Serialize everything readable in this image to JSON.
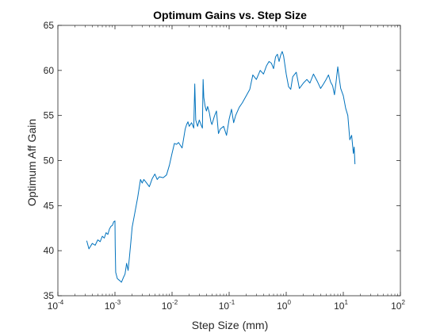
{
  "chart_data": {
    "type": "line",
    "title": "Optimum Gains vs. Step Size",
    "xlabel": "Step Size (mm)",
    "ylabel": "Optimum Aff Gain",
    "xscale": "log",
    "xlim": [
      0.0001,
      100
    ],
    "ylim": [
      35,
      65
    ],
    "xticks": [
      {
        "base": "10",
        "exp": "-4"
      },
      {
        "base": "10",
        "exp": "-3"
      },
      {
        "base": "10",
        "exp": "-2"
      },
      {
        "base": "10",
        "exp": "-1"
      },
      {
        "base": "10",
        "exp": "0"
      },
      {
        "base": "10",
        "exp": "1"
      },
      {
        "base": "10",
        "exp": "2"
      }
    ],
    "yticks": [
      "35",
      "40",
      "45",
      "50",
      "55",
      "60",
      "65"
    ],
    "grid": false,
    "legend": "none",
    "line_color": "#0072BD",
    "series": [
      {
        "x": [
          0.00032,
          0.00035,
          0.0004,
          0.00045,
          0.0005,
          0.00055,
          0.0006,
          0.00065,
          0.0007,
          0.00075,
          0.0008,
          0.00085,
          0.0009,
          0.00095,
          0.001,
          0.00101,
          0.00103,
          0.0011,
          0.0012,
          0.0013,
          0.0014,
          0.0015,
          0.0016,
          0.0017,
          0.0018,
          0.0019,
          0.002,
          0.0022,
          0.0025,
          0.0028,
          0.003,
          0.0032,
          0.0035,
          0.004,
          0.0045,
          0.005,
          0.0055,
          0.006,
          0.007,
          0.008,
          0.009,
          0.01,
          0.011,
          0.012,
          0.013,
          0.015,
          0.017,
          0.018,
          0.019,
          0.02,
          0.022,
          0.024,
          0.025,
          0.026,
          0.028,
          0.03,
          0.032,
          0.034,
          0.035,
          0.036,
          0.038,
          0.04,
          0.042,
          0.045,
          0.048,
          0.05,
          0.055,
          0.06,
          0.065,
          0.07,
          0.08,
          0.09,
          0.1,
          0.11,
          0.12,
          0.13,
          0.15,
          0.17,
          0.2,
          0.23,
          0.26,
          0.3,
          0.35,
          0.4,
          0.45,
          0.5,
          0.55,
          0.6,
          0.65,
          0.7,
          0.75,
          0.8,
          0.85,
          0.9,
          1.0,
          1.1,
          1.2,
          1.3,
          1.5,
          1.7,
          2.0,
          2.3,
          2.6,
          3.0,
          3.5,
          4.0,
          4.5,
          5.0,
          5.5,
          6.0,
          6.5,
          7.0,
          7.5,
          8.0,
          8.5,
          9.0,
          10.0,
          11.0,
          12.0,
          13.0,
          14.0,
          15.0,
          15.5,
          16.0
        ],
        "y": [
          41.1,
          40.2,
          40.8,
          40.6,
          41.2,
          41.0,
          41.6,
          41.4,
          42.0,
          41.8,
          42.4,
          42.7,
          42.8,
          43.2,
          43.3,
          40.5,
          37.6,
          36.9,
          36.7,
          36.5,
          37.0,
          37.4,
          38.6,
          37.8,
          39.4,
          41.0,
          42.6,
          44.0,
          45.9,
          47.9,
          47.5,
          47.9,
          47.6,
          47.1,
          48.0,
          48.5,
          47.9,
          48.2,
          48.1,
          48.4,
          49.5,
          50.8,
          51.9,
          51.8,
          52.0,
          51.4,
          53.5,
          54.0,
          54.3,
          53.8,
          54.2,
          53.6,
          58.5,
          54.5,
          53.8,
          54.5,
          54.0,
          53.6,
          59.0,
          57.0,
          56.0,
          55.5,
          56.0,
          55.3,
          54.3,
          54.0,
          54.9,
          55.5,
          53.0,
          53.5,
          53.8,
          52.8,
          54.6,
          55.7,
          54.2,
          55.0,
          55.9,
          56.4,
          57.2,
          57.9,
          59.5,
          59.0,
          60.0,
          59.6,
          60.5,
          61.0,
          60.8,
          60.2,
          61.5,
          61.8,
          61.0,
          61.7,
          62.1,
          61.6,
          59.6,
          58.2,
          57.9,
          59.3,
          59.8,
          58.0,
          58.6,
          59.0,
          58.6,
          59.6,
          58.8,
          58.0,
          58.5,
          59.0,
          59.5,
          58.7,
          58.3,
          57.3,
          58.8,
          60.4,
          59.1,
          58.0,
          57.2,
          55.8,
          55.0,
          52.3,
          52.8,
          50.8,
          51.5,
          49.6
        ]
      }
    ]
  }
}
